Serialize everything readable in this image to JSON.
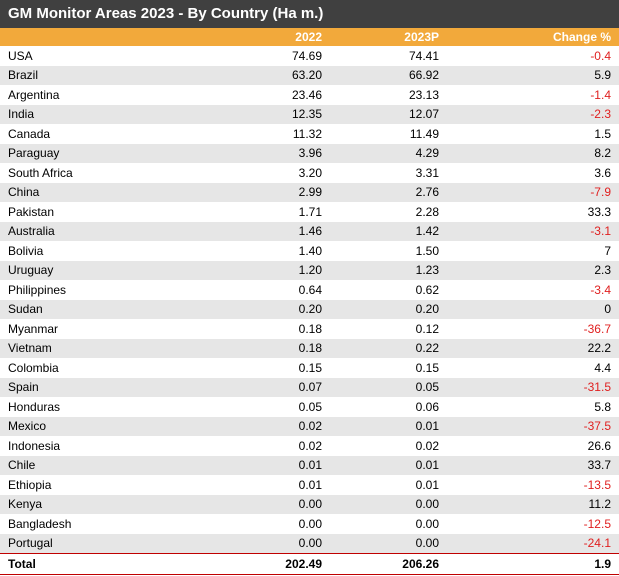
{
  "title": "GM Monitor Areas 2023 - By Country (Ha m.)",
  "chart_data": {
    "type": "table",
    "title": "GM Monitor Areas 2023 - By Country (Ha m.)",
    "columns": [
      "",
      "2022",
      "2023P",
      "Change %"
    ],
    "rows": [
      {
        "country": "USA",
        "v2022": "74.69",
        "v2023": "74.41",
        "change": "-0.4"
      },
      {
        "country": "Brazil",
        "v2022": "63.20",
        "v2023": "66.92",
        "change": "5.9"
      },
      {
        "country": "Argentina",
        "v2022": "23.46",
        "v2023": "23.13",
        "change": "-1.4"
      },
      {
        "country": "India",
        "v2022": "12.35",
        "v2023": "12.07",
        "change": "-2.3"
      },
      {
        "country": "Canada",
        "v2022": "11.32",
        "v2023": "11.49",
        "change": "1.5"
      },
      {
        "country": "Paraguay",
        "v2022": "3.96",
        "v2023": "4.29",
        "change": "8.2"
      },
      {
        "country": "South Africa",
        "v2022": "3.20",
        "v2023": "3.31",
        "change": "3.6"
      },
      {
        "country": "China",
        "v2022": "2.99",
        "v2023": "2.76",
        "change": "-7.9"
      },
      {
        "country": "Pakistan",
        "v2022": "1.71",
        "v2023": "2.28",
        "change": "33.3"
      },
      {
        "country": "Australia",
        "v2022": "1.46",
        "v2023": "1.42",
        "change": "-3.1"
      },
      {
        "country": "Bolivia",
        "v2022": "1.40",
        "v2023": "1.50",
        "change": "7"
      },
      {
        "country": "Uruguay",
        "v2022": "1.20",
        "v2023": "1.23",
        "change": "2.3"
      },
      {
        "country": "Philippines",
        "v2022": "0.64",
        "v2023": "0.62",
        "change": "-3.4"
      },
      {
        "country": "Sudan",
        "v2022": "0.20",
        "v2023": "0.20",
        "change": "0"
      },
      {
        "country": "Myanmar",
        "v2022": "0.18",
        "v2023": "0.12",
        "change": "-36.7"
      },
      {
        "country": "Vietnam",
        "v2022": "0.18",
        "v2023": "0.22",
        "change": "22.2"
      },
      {
        "country": "Colombia",
        "v2022": "0.15",
        "v2023": "0.15",
        "change": "4.4"
      },
      {
        "country": "Spain",
        "v2022": "0.07",
        "v2023": "0.05",
        "change": "-31.5"
      },
      {
        "country": "Honduras",
        "v2022": "0.05",
        "v2023": "0.06",
        "change": "5.8"
      },
      {
        "country": "Mexico",
        "v2022": "0.02",
        "v2023": "0.01",
        "change": "-37.5"
      },
      {
        "country": "Indonesia",
        "v2022": "0.02",
        "v2023": "0.02",
        "change": "26.6"
      },
      {
        "country": "Chile",
        "v2022": "0.01",
        "v2023": "0.01",
        "change": "33.7"
      },
      {
        "country": "Ethiopia",
        "v2022": "0.01",
        "v2023": "0.01",
        "change": "-13.5"
      },
      {
        "country": "Kenya",
        "v2022": "0.00",
        "v2023": "0.00",
        "change": "11.2"
      },
      {
        "country": "Bangladesh",
        "v2022": "0.00",
        "v2023": "0.00",
        "change": "-12.5"
      },
      {
        "country": "Portugal",
        "v2022": "0.00",
        "v2023": "0.00",
        "change": "-24.1"
      }
    ],
    "total": {
      "country": "Total",
      "v2022": "202.49",
      "v2023": "206.26",
      "change": "1.9"
    }
  },
  "colors": {
    "header_bg": "#404040",
    "column_header_bg": "#f2a93b",
    "negative": "#e02020",
    "stripe": "#e6e6e6"
  }
}
